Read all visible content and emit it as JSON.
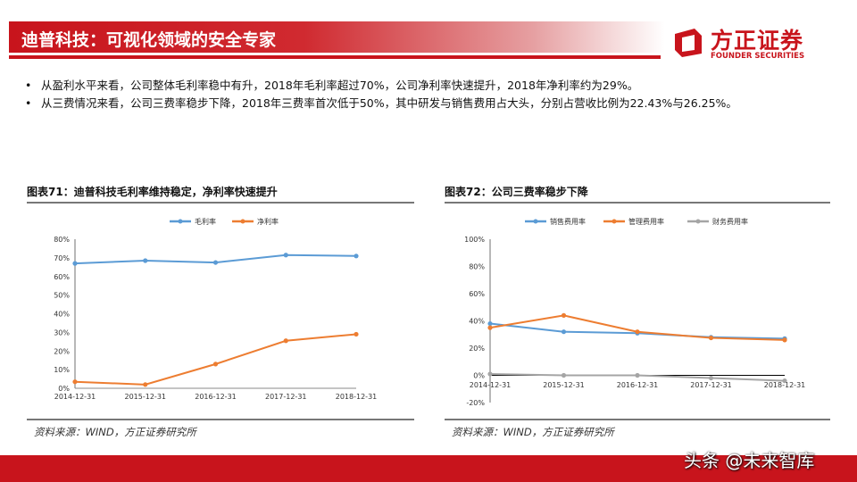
{
  "header": {
    "title": "迪普科技：可视化领域的安全专家",
    "brand_color": "#c8141c"
  },
  "logo": {
    "cn": "方正证券",
    "en": "FOUNDER SECURITIES"
  },
  "bullets": [
    "从盈利水平来看，公司整体毛利率稳中有升，2018年毛利率超过70%，公司净利率快速提升，2018年净利率约为29%。",
    "从三费情况来看，公司三费率稳步下降，2018年三费率首次低于50%，其中研发与销售费用占大头，分别占营收比例为22.43%与26.25%。"
  ],
  "chart_data": [
    {
      "type": "line",
      "title": "图表71：迪普科技毛利率维持稳定，净利率快速提升",
      "categories": [
        "2014-12-31",
        "2015-12-31",
        "2016-12-31",
        "2017-12-31",
        "2018-12-31"
      ],
      "yticks": [
        "0%",
        "10%",
        "20%",
        "30%",
        "40%",
        "50%",
        "60%",
        "70%",
        "80%"
      ],
      "ylim": [
        0,
        80
      ],
      "legend": "top",
      "series": [
        {
          "name": "毛利率",
          "color": "#5b9bd5",
          "values": [
            67,
            68.5,
            67.5,
            71.5,
            71
          ]
        },
        {
          "name": "净利率",
          "color": "#ed7d31",
          "values": [
            3.5,
            2,
            13,
            25.5,
            29
          ]
        }
      ],
      "source": "资料来源：WIND，方正证券研究所"
    },
    {
      "type": "line",
      "title": "图表72：公司三费率稳步下降",
      "categories": [
        "2014-12-31",
        "2015-12-31",
        "2016-12-31",
        "2017-12-31",
        "2018-12-31"
      ],
      "yticks": [
        "-20%",
        "0%",
        "20%",
        "40%",
        "60%",
        "80%",
        "100%"
      ],
      "ylim": [
        -20,
        100
      ],
      "legend": "top",
      "series": [
        {
          "name": "销售费用率",
          "color": "#5b9bd5",
          "values": [
            38,
            32,
            31,
            28,
            27
          ]
        },
        {
          "name": "管理费用率",
          "color": "#ed7d31",
          "values": [
            35,
            44,
            32,
            27.5,
            26
          ]
        },
        {
          "name": "财务费用率",
          "color": "#a5a5a5",
          "values": [
            1,
            0,
            0,
            -2,
            -4
          ]
        }
      ],
      "source": "资料来源：WIND，方正证券研究所"
    }
  ],
  "watermark": "头条 @未来智库"
}
